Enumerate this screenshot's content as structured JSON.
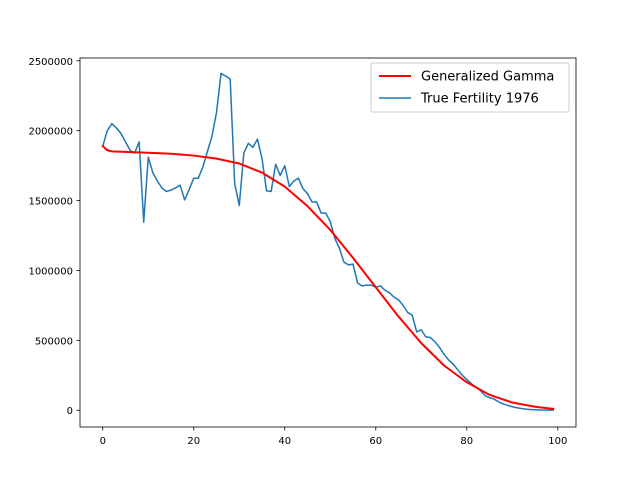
{
  "chart_data": {
    "type": "line",
    "title": "",
    "xlabel": "",
    "ylabel": "",
    "xlim": [
      -5,
      104
    ],
    "ylim": [
      -120000,
      2520000
    ],
    "x_ticks": [
      0,
      20,
      40,
      60,
      80,
      100
    ],
    "x_tick_labels": [
      "0",
      "20",
      "40",
      "60",
      "80",
      "100"
    ],
    "y_ticks": [
      0,
      500000,
      1000000,
      1500000,
      2000000,
      2500000
    ],
    "y_tick_labels": [
      "0",
      "500000",
      "1000000",
      "1500000",
      "2000000",
      "2500000"
    ],
    "grid": false,
    "legend_position": "top-right",
    "series": [
      {
        "name": "Generalized Gamma",
        "color": "#ff0000",
        "line_width": 2,
        "x": [
          0,
          1,
          2,
          5,
          10,
          15,
          20,
          25,
          30,
          35,
          40,
          45,
          50,
          55,
          60,
          65,
          70,
          75,
          80,
          85,
          90,
          95,
          99
        ],
        "y": [
          1890000,
          1860000,
          1852000,
          1848000,
          1842000,
          1835000,
          1822000,
          1800000,
          1765000,
          1700000,
          1600000,
          1460000,
          1290000,
          1090000,
          880000,
          670000,
          480000,
          320000,
          200000,
          110000,
          55000,
          25000,
          10000
        ]
      },
      {
        "name": "True Fertility 1976",
        "color": "#1f77b4",
        "line_width": 1.5,
        "x": [
          0,
          1,
          2,
          3,
          4,
          5,
          6,
          7,
          8,
          9,
          10,
          11,
          12,
          13,
          14,
          15,
          16,
          17,
          18,
          19,
          20,
          21,
          22,
          23,
          24,
          25,
          26,
          27,
          28,
          29,
          30,
          31,
          32,
          33,
          34,
          35,
          36,
          37,
          38,
          39,
          40,
          41,
          42,
          43,
          44,
          45,
          46,
          47,
          48,
          49,
          50,
          51,
          52,
          53,
          54,
          55,
          56,
          57,
          58,
          59,
          60,
          61,
          62,
          63,
          64,
          65,
          66,
          67,
          68,
          69,
          70,
          71,
          72,
          73,
          74,
          75,
          76,
          77,
          78,
          79,
          80,
          81,
          82,
          83,
          84,
          85,
          86,
          87,
          88,
          89,
          90,
          91,
          92,
          93,
          94,
          95,
          96,
          97,
          98,
          99
        ],
        "y": [
          1890000,
          2000000,
          2050000,
          2020000,
          1980000,
          1920000,
          1860000,
          1840000,
          1920000,
          1345000,
          1810000,
          1700000,
          1640000,
          1590000,
          1565000,
          1575000,
          1590000,
          1610000,
          1505000,
          1580000,
          1660000,
          1660000,
          1740000,
          1850000,
          1960000,
          2130000,
          2410000,
          2390000,
          2370000,
          1620000,
          1465000,
          1840000,
          1910000,
          1880000,
          1940000,
          1800000,
          1570000,
          1565000,
          1760000,
          1680000,
          1750000,
          1600000,
          1640000,
          1660000,
          1585000,
          1550000,
          1490000,
          1490000,
          1410000,
          1410000,
          1350000,
          1230000,
          1160000,
          1060000,
          1040000,
          1045000,
          910000,
          890000,
          895000,
          895000,
          880000,
          890000,
          860000,
          840000,
          810000,
          790000,
          750000,
          700000,
          680000,
          560000,
          575000,
          525000,
          520000,
          490000,
          450000,
          400000,
          360000,
          330000,
          290000,
          250000,
          220000,
          190000,
          165000,
          140000,
          105000,
          90000,
          80000,
          60000,
          45000,
          35000,
          25000,
          18000,
          12000,
          8000,
          5000,
          3000,
          2000,
          1500,
          1000,
          500
        ]
      }
    ]
  }
}
